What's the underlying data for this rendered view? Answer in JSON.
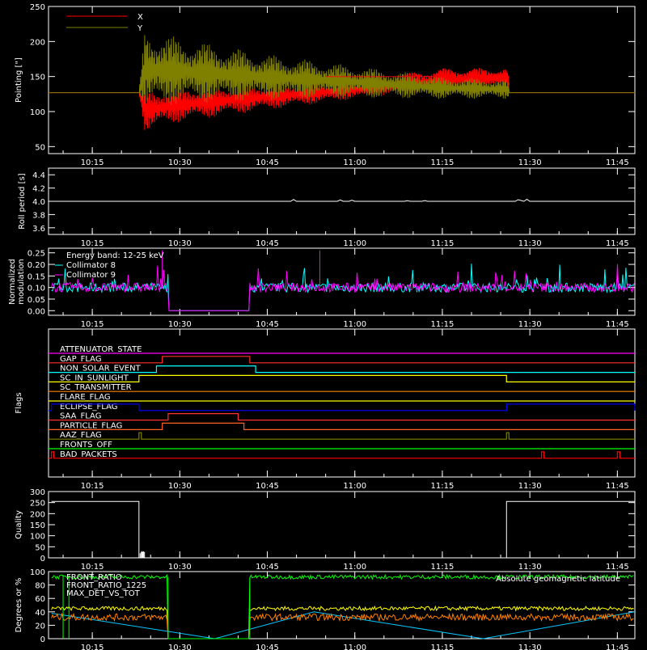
{
  "colors": {
    "background": "#000000",
    "axes": "#ffffff",
    "x_series": "#ff0000",
    "y_series": "#808000",
    "collimator_8": "#00ffff",
    "collimator_9": "#ff00ff"
  },
  "chart_data": [
    {
      "type": "line",
      "id": "pointing",
      "ylabel": "Pointing [\"]",
      "xticks": [
        "10:15",
        "10:30",
        "10:45",
        "11:00",
        "11:15",
        "11:30",
        "11:45"
      ],
      "yticks": [
        "50",
        "100",
        "150",
        "200",
        "250"
      ],
      "ylim": [
        40,
        250
      ],
      "legend_position": "top-left",
      "series": [
        {
          "name": "X",
          "color": "#ff0000",
          "baseline": 127,
          "envelope": {
            "x": [
              "10:08",
              "10:23",
              "10:24",
              "10:30",
              "10:45",
              "11:00",
              "11:15",
              "11:26",
              "11:27",
              "11:48"
            ],
            "low": [
              127,
              127,
              72,
              85,
              102,
              118,
              128,
              132,
              127,
              127
            ],
            "high": [
              127,
              127,
              132,
              135,
              140,
              145,
              162,
              163,
              127,
              127
            ]
          }
        },
        {
          "name": "Y",
          "color": "#808000",
          "baseline": 127,
          "envelope": {
            "x": [
              "10:08",
              "10:23",
              "10:24",
              "10:30",
              "10:45",
              "11:00",
              "11:15",
              "11:26",
              "11:27",
              "11:48"
            ],
            "low": [
              127,
              127,
              102,
              110,
              116,
              120,
              118,
              118,
              127,
              127
            ],
            "high": [
              127,
              127,
              218,
              205,
              182,
              165,
              150,
              146,
              127,
              127
            ]
          }
        }
      ]
    },
    {
      "type": "line",
      "id": "roll",
      "ylabel": "Roll period [s]",
      "xticks": [
        "10:15",
        "10:30",
        "10:45",
        "11:00",
        "11:15",
        "11:30",
        "11:45"
      ],
      "yticks": [
        "3.6",
        "3.8",
        "4.0",
        "4.2",
        "4.4"
      ],
      "ylim": [
        3.5,
        4.5
      ],
      "series": [
        {
          "x_range": [
            "10:08",
            "11:48"
          ],
          "value": 4.0,
          "color": "#ffffff"
        }
      ]
    },
    {
      "type": "line",
      "id": "modulation",
      "ylabel": "Normalized modulation",
      "xticks": [
        "10:15",
        "10:30",
        "10:45",
        "11:00",
        "11:15",
        "11:30",
        "11:45"
      ],
      "yticks": [
        "0.00",
        "0.05",
        "0.10",
        "0.15",
        "0.20",
        "0.25"
      ],
      "ylim": [
        -0.02,
        0.27
      ],
      "legend": [
        "Energy band: 12-25 keV",
        "Collimator 8",
        "Collimator 9"
      ],
      "series": [
        {
          "name": "Collimator 8",
          "color": "#00ffff",
          "mean": 0.1,
          "gap": [
            "10:28",
            "10:42"
          ]
        },
        {
          "name": "Collimator 9",
          "color": "#ff00ff",
          "mean": 0.1,
          "gap": [
            "10:28",
            "10:42"
          ]
        }
      ]
    },
    {
      "type": "line",
      "id": "flags",
      "ylabel": "Flags",
      "xticks": [
        "10:15",
        "10:30",
        "10:45",
        "11:00",
        "11:15",
        "11:30",
        "11:45"
      ],
      "flags": [
        {
          "name": "ATTENUATOR_STATE",
          "color": "#ff00ff",
          "on": []
        },
        {
          "name": "GAP_FLAG",
          "color": "#ff3030",
          "on": [
            [
              "10:27",
              "10:42"
            ]
          ]
        },
        {
          "name": "NON_SOLAR_EVENT",
          "color": "#00ffff",
          "on": [
            [
              "10:26",
              "10:43"
            ]
          ]
        },
        {
          "name": "SC_IN_SUNLIGHT",
          "color": "#ffff00",
          "on": [
            [
              "10:23",
              "11:26"
            ]
          ]
        },
        {
          "name": "SC_TRANSMITTER",
          "color": "#ff8000",
          "on": []
        },
        {
          "name": "FLARE_FLAG",
          "color": "#ffff00",
          "on": []
        },
        {
          "name": "ECLIPSE_FLAG",
          "color": "#0000ff",
          "on": [
            [
              "10:08",
              "10:23"
            ],
            [
              "11:26",
              "11:48"
            ]
          ]
        },
        {
          "name": "SAA_FLAG",
          "color": "#ff3030",
          "on": [
            [
              "10:28",
              "10:40"
            ]
          ]
        },
        {
          "name": "PARTICLE_FLAG",
          "color": "#ff6020",
          "on": [
            [
              "10:27",
              "10:41"
            ]
          ]
        },
        {
          "name": "AAZ_FLAG",
          "color": "#808000",
          "on": [
            [
              "10:23",
              "10:23"
            ],
            [
              "11:26",
              "11:26"
            ]
          ]
        },
        {
          "name": "FRONTS_OFF",
          "color": "#00ff00",
          "on": []
        },
        {
          "name": "BAD_PACKETS",
          "color": "#ff0000",
          "on": [
            [
              "10:08",
              "10:08"
            ],
            [
              "11:32",
              "11:32"
            ],
            [
              "11:45",
              "11:45"
            ]
          ]
        }
      ]
    },
    {
      "type": "line",
      "id": "quality",
      "ylabel": "Quality",
      "xticks": [
        "10:15",
        "10:30",
        "10:45",
        "11:00",
        "11:15",
        "11:30",
        "11:45"
      ],
      "yticks": [
        "0",
        "50",
        "100",
        "150",
        "200",
        "250",
        "300"
      ],
      "ylim": [
        0,
        300
      ],
      "series": [
        {
          "color": "#ffffff",
          "segments": [
            [
              "10:08",
              "10:23",
              255
            ],
            [
              "10:23",
              "11:26",
              0
            ],
            [
              "11:26",
              "11:48",
              255
            ]
          ]
        }
      ]
    },
    {
      "type": "line",
      "id": "geo",
      "ylabel": "Degrees or %",
      "xticks": [
        "10:15",
        "10:30",
        "10:45",
        "11:00",
        "11:15",
        "11:30",
        "11:45"
      ],
      "yticks": [
        "0",
        "20",
        "40",
        "60",
        "80",
        "100"
      ],
      "ylim": [
        0,
        100
      ],
      "legend": [
        "FRONT_RATIO",
        "FRONT_RATIO_1225",
        "MAX_DET_VS_TOT"
      ],
      "annotation": "Absolute geomagnetic latitude",
      "series": [
        {
          "name": "FRONT_RATIO",
          "color": "#00ff00",
          "mean": 92
        },
        {
          "name": "FRONT_RATIO_1225",
          "color": "#ffff00",
          "mean": 45
        },
        {
          "name": "MAX_DET_VS_TOT",
          "color": "#ff8000",
          "mean": 32
        },
        {
          "name": "Absolute geomagnetic latitude",
          "color": "#00c8ff"
        }
      ]
    }
  ]
}
